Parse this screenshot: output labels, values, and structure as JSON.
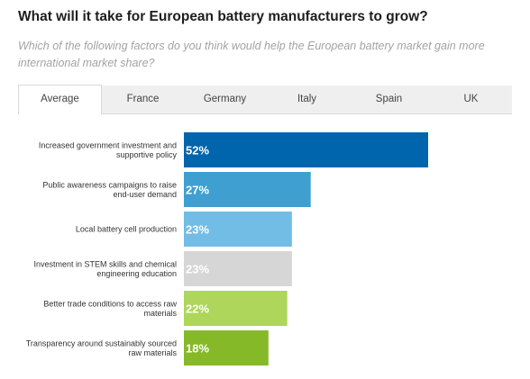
{
  "header": {
    "title": "What will it take for European battery manufacturers to grow?",
    "subtitle": "Which of the following factors do you think would help the European battery market gain more international market share?"
  },
  "tabs": [
    {
      "label": "Average",
      "active": true
    },
    {
      "label": "France",
      "active": false
    },
    {
      "label": "Germany",
      "active": false
    },
    {
      "label": "Italy",
      "active": false
    },
    {
      "label": "Spain",
      "active": false
    },
    {
      "label": "UK",
      "active": false
    }
  ],
  "chart_data": {
    "type": "bar",
    "orientation": "horizontal",
    "categories": [
      [
        "Increased government investment and",
        "supportive policy"
      ],
      [
        "Public awareness campaigns to raise",
        "end-user demand"
      ],
      [
        "Local battery cell production"
      ],
      [
        "Investment in STEM skills and chemical",
        "engineering education"
      ],
      [
        "Better trade conditions to access raw",
        "materials"
      ],
      [
        "Transparency around sustainably sourced",
        "raw materials"
      ]
    ],
    "values": [
      52,
      27,
      23,
      23,
      22,
      18
    ],
    "value_labels": [
      "52%",
      "27%",
      "23%",
      "23%",
      "22%",
      "18%"
    ],
    "colors": [
      "#0065ad",
      "#3f9fd1",
      "#71bde6",
      "#d6d6d6",
      "#add65a",
      "#86b928"
    ],
    "xlim": [
      0,
      52
    ],
    "grid": false,
    "legend": "none"
  }
}
